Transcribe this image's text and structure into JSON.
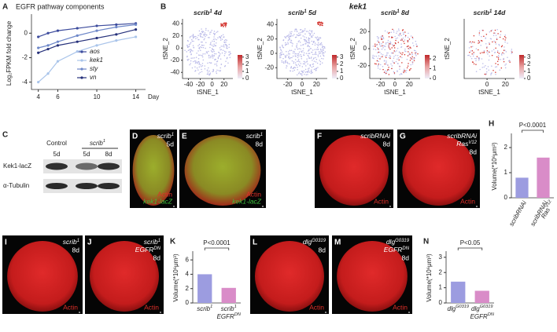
{
  "chart_data": [
    {
      "type": "line",
      "label": "A",
      "title": "EGFR pathway components",
      "ylabel": "Log₂FPKM fold change",
      "xlabel": "Day",
      "x": [
        4,
        5,
        6,
        8,
        10,
        12,
        14
      ],
      "xlim": [
        3.3,
        15
      ],
      "xticks": [
        4,
        6,
        10,
        14
      ],
      "ylim": [
        -4.6,
        1.3
      ],
      "yticks": [
        -4,
        -2,
        0
      ],
      "series": [
        {
          "name": "aos",
          "color": "#3b4a9c",
          "values": [
            -0.3,
            0.0,
            0.2,
            0.4,
            0.6,
            0.7,
            0.8
          ]
        },
        {
          "name": "kek1",
          "color": "#a9c4ea",
          "values": [
            -4.0,
            -3.3,
            -2.3,
            -1.5,
            -1.0,
            -0.6,
            -0.3
          ]
        },
        {
          "name": "sty",
          "color": "#6d87c8",
          "values": [
            -1.2,
            -1.0,
            -0.7,
            -0.2,
            0.2,
            0.5,
            0.7
          ]
        },
        {
          "name": "vn",
          "color": "#25307a",
          "values": [
            -1.6,
            -1.3,
            -1.0,
            -0.7,
            -0.4,
            -0.1,
            0.3
          ]
        }
      ]
    },
    {
      "type": "bar",
      "label": "H",
      "ylabel": "Volume(*10⁶μm³)",
      "annotation": "P<0.0001",
      "categories": [
        [
          [
            "scribRNAi"
          ]
        ],
        [
          [
            "scribRNAi"
          ],
          [
            "Ras",
            "V12"
          ]
        ]
      ],
      "values": [
        0.8,
        1.6
      ],
      "colors": [
        "#9c9ce0",
        "#d98cc8"
      ],
      "ylim": [
        0,
        2.5
      ],
      "yticks": [
        0,
        1,
        2
      ]
    },
    {
      "type": "bar",
      "label": "K",
      "ylabel": "Volume(*10⁶μm³)",
      "annotation": "P<0.0001",
      "categories": [
        [
          [
            "scrib",
            "1"
          ]
        ],
        [
          [
            "scrib",
            "1"
          ],
          [
            "EGFR",
            "DN"
          ]
        ]
      ],
      "values": [
        4.0,
        2.1
      ],
      "colors": [
        "#9c9ce0",
        "#d98cc8"
      ],
      "ylim": [
        0,
        7
      ],
      "yticks": [
        0,
        2,
        4,
        6
      ]
    },
    {
      "type": "bar",
      "label": "N",
      "ylabel": "Volume(*10⁶μm³)",
      "annotation": "P<0.05",
      "categories": [
        [
          [
            "dlg",
            "G0319"
          ]
        ],
        [
          [
            "dlg",
            "G0319"
          ],
          [
            "EGFR",
            "DN"
          ]
        ]
      ],
      "values": [
        1.4,
        0.8
      ],
      "colors": [
        "#9c9ce0",
        "#d98cc8"
      ],
      "ylim": [
        0,
        3.3
      ],
      "yticks": [
        0,
        1,
        2,
        3
      ]
    }
  ],
  "tsne": {
    "label": "B",
    "title": "kek1",
    "xlabel": "tSNE_1",
    "ylabel": "tSNE_2",
    "plots": [
      {
        "title": [
          "scrib",
          "1",
          " 4d"
        ],
        "xlim": [
          -50,
          35
        ],
        "ylim": [
          -50,
          48
        ],
        "xticks": [
          -40,
          -20,
          0,
          20
        ],
        "yticks": [
          40,
          20,
          0,
          -20,
          -40
        ],
        "cbar_lim": [
          0,
          3.3
        ],
        "cbar_ticks": [
          0,
          1,
          2,
          3
        ]
      },
      {
        "title": [
          "scrib",
          "1",
          " 5d"
        ],
        "xlim": [
          -35,
          35
        ],
        "ylim": [
          -35,
          48
        ],
        "xticks": [
          -20,
          0,
          20
        ],
        "yticks": [
          40,
          20,
          0,
          -20
        ],
        "cbar_lim": [
          0,
          3.3
        ],
        "cbar_ticks": [
          0,
          1,
          2,
          3
        ]
      },
      {
        "title": [
          "scrib",
          "1",
          " 8d"
        ],
        "xlim": [
          -35,
          35
        ],
        "ylim": [
          -35,
          35
        ],
        "xticks": [
          -20,
          0,
          20
        ],
        "yticks": [
          20,
          0,
          -20
        ],
        "cbar_lim": [
          0,
          2.4
        ],
        "cbar_ticks": [
          0,
          1,
          2
        ]
      },
      {
        "title": [
          "scrib",
          "1",
          " 14d"
        ],
        "xlim": [
          -25,
          30
        ],
        "ylim": [
          -30,
          30
        ],
        "xticks": [
          0,
          20
        ],
        "yticks": [],
        "cbar_lim": [
          0,
          3.3
        ],
        "cbar_ticks": [
          0,
          1,
          2,
          3
        ]
      }
    ]
  },
  "blot": {
    "label": "C",
    "control": "Control",
    "mutant": [
      "scrib",
      "1"
    ],
    "lanes": [
      "5d",
      "5d",
      "8d"
    ],
    "rows": [
      "Kek1-lacZ",
      "α-Tubulin"
    ]
  },
  "images": [
    {
      "label": "D",
      "genotype": [
        [
          "scrib",
          "1"
        ]
      ],
      "age": "5d",
      "stains": [
        {
          "text": "Actin",
          "color": "#e0302a"
        },
        {
          "text": "kek1-lacZ",
          "color": "#3cc03c"
        }
      ]
    },
    {
      "label": "E",
      "genotype": [
        [
          "scrib",
          "1"
        ]
      ],
      "age": "8d",
      "stains": [
        {
          "text": "Actin",
          "color": "#e0302a"
        },
        {
          "text": "kek1-lacZ",
          "color": "#3cc03c"
        }
      ]
    },
    {
      "label": "F",
      "genotype": [
        [
          "scribRNAi"
        ]
      ],
      "age": "8d",
      "stains": [
        {
          "text": "Actin",
          "color": "#e0302a"
        }
      ]
    },
    {
      "label": "G",
      "genotype": [
        [
          "scribRNAi"
        ],
        [
          "Ras",
          "V12"
        ]
      ],
      "age": "8d",
      "stains": [
        {
          "text": "Actin",
          "color": "#e0302a"
        }
      ]
    },
    {
      "label": "I",
      "genotype": [
        [
          "scrib",
          "1"
        ]
      ],
      "age": "8d",
      "stains": [
        {
          "text": "Actin",
          "color": "#e0302a"
        }
      ]
    },
    {
      "label": "J",
      "genotype": [
        [
          "scrib",
          "1"
        ],
        [
          "EGFR",
          "DN"
        ]
      ],
      "age": "8d",
      "stains": [
        {
          "text": "Actin",
          "color": "#e0302a"
        }
      ]
    },
    {
      "label": "L",
      "genotype": [
        [
          "dlg",
          "G0319"
        ]
      ],
      "age": "8d",
      "stains": [
        {
          "text": "Actin",
          "color": "#e0302a"
        }
      ]
    },
    {
      "label": "M",
      "genotype": [
        [
          "dlg",
          "G0319"
        ],
        [
          "EGFR",
          "DN"
        ]
      ],
      "age": "8d",
      "stains": [
        {
          "text": "Actin",
          "color": "#e0302a"
        }
      ]
    }
  ]
}
